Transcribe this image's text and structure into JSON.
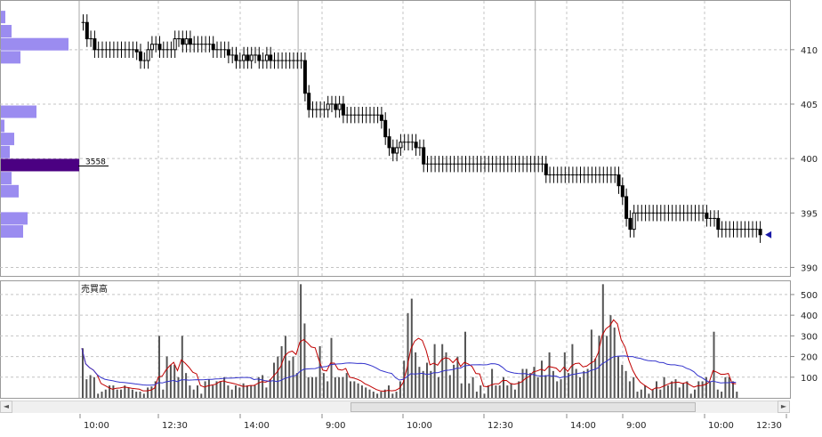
{
  "chart_data": {
    "type": "candlestick",
    "price_axis": {
      "ticks": [
        410,
        405,
        400,
        395,
        390
      ],
      "ylim": [
        389.3,
        414.4
      ]
    },
    "volume_axis": {
      "ticks": [
        500,
        400,
        300,
        200,
        100
      ],
      "ylim": [
        0,
        560
      ]
    },
    "volume_label": "売買高",
    "time_labels": [
      "10:00",
      "12:30",
      "14:00",
      "9:00",
      "10:00",
      "12:30",
      "14:00",
      "9:00",
      "10:00",
      "12:30"
    ],
    "volume_profile_label": "3558",
    "last_price": 393.0,
    "colors": {
      "candle": "#000000",
      "ma_short": "#c00000",
      "ma_long": "#3333cc",
      "volume_bar": "#555555",
      "profile_bar": "#9b8cf0",
      "profile_peak": "#4b0082",
      "marker": "#1a1aa8"
    },
    "session_boundaries": [
      0,
      57,
      119
    ],
    "profile": [
      {
        "price": 413.0,
        "size": 5
      },
      {
        "price": 411.7,
        "size": 12
      },
      {
        "price": 410.5,
        "size": 76
      },
      {
        "price": 409.3,
        "size": 22
      },
      {
        "price": 404.3,
        "size": 40
      },
      {
        "price": 403.0,
        "size": 4
      },
      {
        "price": 401.8,
        "size": 15
      },
      {
        "price": 400.6,
        "size": 10
      },
      {
        "price": 399.4,
        "size": 88
      },
      {
        "price": 398.2,
        "size": 12
      },
      {
        "price": 397.0,
        "size": 20
      },
      {
        "price": 394.5,
        "size": 30
      },
      {
        "price": 393.3,
        "size": 25
      }
    ],
    "series": [
      {
        "name": "price",
        "close": [
          412.5,
          411.0,
          411.0,
          410.0,
          410.0,
          410.0,
          410.0,
          410.0,
          410.0,
          410.0,
          410.0,
          410.0,
          410.0,
          410.0,
          409.8,
          409.0,
          409.0,
          410.0,
          410.5,
          410.5,
          410.0,
          410.0,
          410.0,
          410.0,
          411.0,
          411.0,
          410.5,
          411.0,
          410.5,
          410.5,
          410.5,
          410.5,
          410.5,
          410.5,
          410.0,
          410.0,
          410.0,
          410.0,
          409.5,
          409.5,
          409.0,
          409.0,
          409.5,
          409.0,
          409.5,
          409.5,
          409.0,
          409.0,
          409.5,
          409.0,
          409.0,
          409.0,
          409.0,
          409.0,
          409.0,
          409.0,
          409.0,
          409.0,
          406.0,
          404.5,
          404.5,
          404.5,
          404.5,
          404.5,
          405.0,
          405.0,
          404.5,
          405.0,
          404.0,
          404.0,
          404.0,
          404.0,
          404.0,
          404.0,
          404.0,
          404.0,
          404.0,
          404.0,
          403.5,
          402.0,
          401.0,
          400.5,
          401.0,
          401.5,
          401.5,
          401.5,
          401.5,
          401.0,
          401.0,
          399.5,
          399.5,
          399.5,
          399.5,
          399.5,
          399.5,
          399.5,
          399.5,
          399.5,
          399.5,
          399.5,
          399.5,
          399.5,
          399.5,
          399.5,
          399.5,
          399.5,
          399.5,
          399.5,
          399.5,
          399.5,
          399.5,
          399.5,
          399.5,
          399.5,
          399.5,
          399.5,
          399.5,
          399.5,
          399.5,
          399.5,
          399.5,
          398.5,
          398.5,
          398.5,
          398.5,
          398.5,
          398.5,
          398.5,
          398.5,
          398.5,
          398.5,
          398.5,
          398.5,
          398.5,
          398.5,
          398.5,
          398.5,
          398.5,
          398.5,
          398.5,
          397.5,
          396.5,
          394.5,
          393.5,
          395.0,
          395.0,
          395.0,
          395.0,
          395.0,
          395.0,
          395.0,
          395.0,
          395.0,
          395.0,
          395.0,
          395.0,
          395.0,
          395.0,
          395.0,
          395.0,
          395.0,
          395.0,
          395.0,
          394.5,
          394.5,
          394.5,
          393.5,
          393.5,
          393.5,
          393.5,
          393.5,
          393.5,
          393.5,
          393.5,
          393.5,
          393.5,
          393.5,
          393.0
        ]
      },
      {
        "name": "volume",
        "values": [
          240,
          90,
          110,
          100,
          20,
          30,
          40,
          60,
          60,
          40,
          40,
          60,
          50,
          40,
          30,
          30,
          20,
          50,
          55,
          80,
          300,
          40,
          200,
          160,
          160,
          100,
          300,
          120,
          60,
          40,
          60,
          20,
          80,
          90,
          60,
          80,
          80,
          100,
          60,
          40,
          60,
          50,
          70,
          60,
          60,
          60,
          100,
          110,
          50,
          90,
          170,
          200,
          250,
          300,
          180,
          200,
          120,
          550,
          360,
          100,
          100,
          100,
          250,
          120,
          80,
          290,
          100,
          100,
          100,
          120,
          80,
          80,
          70,
          60,
          50,
          40,
          30,
          20,
          30,
          40,
          60,
          20,
          30,
          80,
          180,
          410,
          480,
          220,
          150,
          130,
          170,
          130,
          260,
          100,
          260,
          220,
          110,
          160,
          200,
          70,
          320,
          70,
          100,
          30,
          60,
          20,
          60,
          140,
          60,
          60,
          100,
          60,
          70,
          40,
          80,
          140,
          140,
          120,
          150,
          100,
          180,
          110,
          220,
          130,
          80,
          90,
          220,
          120,
          260,
          140,
          100,
          130,
          140,
          330,
          190,
          300,
          550,
          300,
          400,
          340,
          200,
          160,
          130,
          80,
          100,
          30,
          40,
          60,
          20,
          40,
          80,
          40,
          100,
          60,
          80,
          90,
          50,
          70,
          80,
          20,
          40,
          80,
          80,
          100,
          80,
          320,
          40,
          30,
          100,
          100,
          80,
          30
        ]
      }
    ]
  },
  "scrollbar": {
    "left_arrow": "◄",
    "right_arrow": "►"
  }
}
